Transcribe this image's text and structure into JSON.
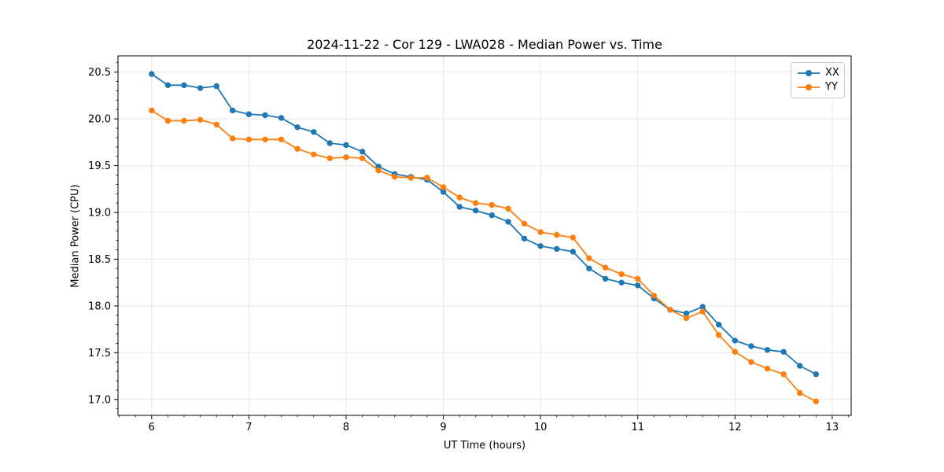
{
  "chart_data": {
    "type": "line",
    "title": "2024-11-22 - Cor 129 - LWA028 - Median Power vs. Time",
    "xlabel": "UT Time (hours)",
    "ylabel": "Median Power (CPU)",
    "legend_position": "upper right",
    "grid": true,
    "xlim": [
      5.654,
      13.195
    ],
    "ylim": [
      16.83,
      20.674
    ],
    "xticks": [
      6,
      7,
      8,
      9,
      10,
      11,
      12,
      13
    ],
    "xtick_labels": [
      "6",
      "7",
      "8",
      "9",
      "10",
      "11",
      "12",
      "13"
    ],
    "yticks": [
      17.0,
      17.5,
      18.0,
      18.5,
      19.0,
      19.5,
      20.0,
      20.5
    ],
    "ytick_labels": [
      "17.0",
      "17.5",
      "18.0",
      "18.5",
      "19.0",
      "19.5",
      "20.0",
      "20.5"
    ],
    "minor_ticks_per_hour_x": 6,
    "minor_tick_step_y": 0.1,
    "x": [
      6.0,
      6.167,
      6.333,
      6.5,
      6.667,
      6.833,
      7.0,
      7.167,
      7.333,
      7.5,
      7.667,
      7.833,
      8.0,
      8.167,
      8.333,
      8.5,
      8.667,
      8.833,
      9.0,
      9.167,
      9.333,
      9.5,
      9.667,
      9.833,
      10.0,
      10.167,
      10.333,
      10.5,
      10.667,
      10.833,
      11.0,
      11.167,
      11.333,
      11.5,
      11.667,
      11.833,
      12.0,
      12.167,
      12.333,
      12.5,
      12.667,
      12.833
    ],
    "series": [
      {
        "name": "XX",
        "color": "#1f77b4",
        "marker": "circle",
        "values": [
          20.48,
          20.36,
          20.36,
          20.33,
          20.35,
          20.09,
          20.05,
          20.04,
          20.01,
          19.91,
          19.86,
          19.74,
          19.72,
          19.65,
          19.49,
          19.41,
          19.38,
          19.35,
          19.22,
          19.06,
          19.02,
          18.97,
          18.9,
          18.72,
          18.64,
          18.61,
          18.58,
          18.4,
          18.29,
          18.25,
          18.22,
          18.08,
          17.96,
          17.92,
          17.99,
          17.8,
          17.63,
          17.57,
          17.53,
          17.51,
          17.36,
          17.27
        ]
      },
      {
        "name": "YY",
        "color": "#ff7f0e",
        "marker": "circle",
        "values": [
          20.09,
          19.98,
          19.98,
          19.99,
          19.94,
          19.79,
          19.78,
          19.78,
          19.78,
          19.68,
          19.62,
          19.58,
          19.59,
          19.58,
          19.45,
          19.38,
          19.37,
          19.37,
          19.27,
          19.16,
          19.1,
          19.08,
          19.04,
          18.88,
          18.79,
          18.76,
          18.73,
          18.51,
          18.41,
          18.34,
          18.29,
          18.11,
          17.96,
          17.87,
          17.94,
          17.69,
          17.51,
          17.4,
          17.33,
          17.27,
          17.07,
          16.98
        ]
      }
    ]
  }
}
